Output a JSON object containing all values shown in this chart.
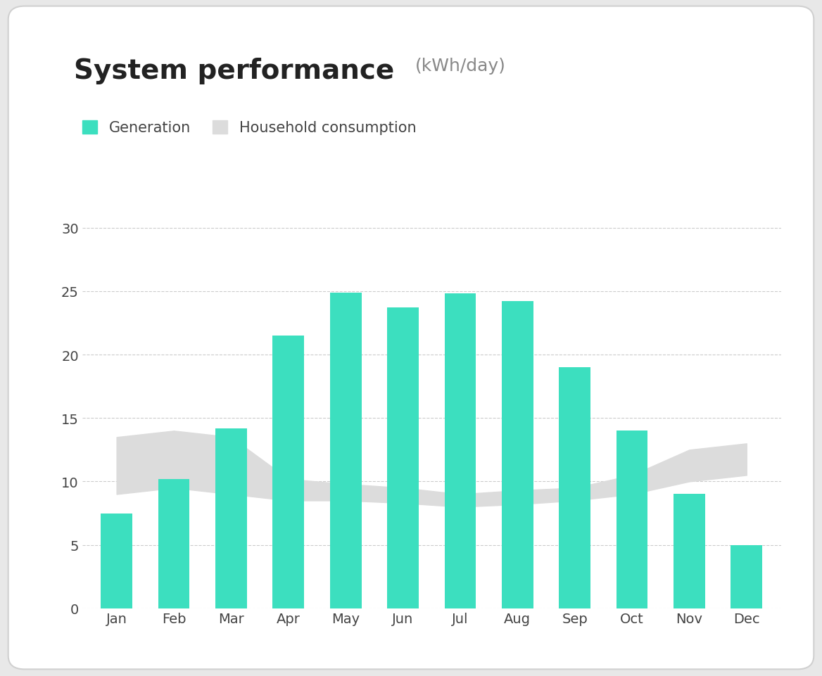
{
  "title": "System performance",
  "subtitle": "(kWh/day)",
  "months": [
    "Jan",
    "Feb",
    "Mar",
    "Apr",
    "May",
    "Jun",
    "Jul",
    "Aug",
    "Sep",
    "Oct",
    "Nov",
    "Dec"
  ],
  "generation": [
    7.5,
    10.2,
    14.2,
    21.5,
    24.9,
    23.7,
    24.8,
    24.2,
    19.0,
    14.0,
    9.0,
    5.0
  ],
  "consumption_upper": [
    13.5,
    14.0,
    13.5,
    10.2,
    9.8,
    9.5,
    9.0,
    9.3,
    9.5,
    10.5,
    12.5,
    13.0
  ],
  "consumption_lower": [
    9.0,
    9.5,
    9.0,
    8.5,
    8.5,
    8.3,
    8.0,
    8.2,
    8.5,
    9.0,
    10.0,
    10.5
  ],
  "bar_color": "#3CDFBF",
  "consumption_fill_color": "#DCDCDC",
  "background_color": "#FFFFFF",
  "outer_background": "#E8E8E8",
  "grid_color": "#CCCCCC",
  "ylim": [
    0,
    32
  ],
  "yticks": [
    0,
    5,
    10,
    15,
    20,
    25,
    30
  ],
  "title_fontsize": 28,
  "subtitle_fontsize": 18,
  "axis_fontsize": 14,
  "legend_fontsize": 15
}
